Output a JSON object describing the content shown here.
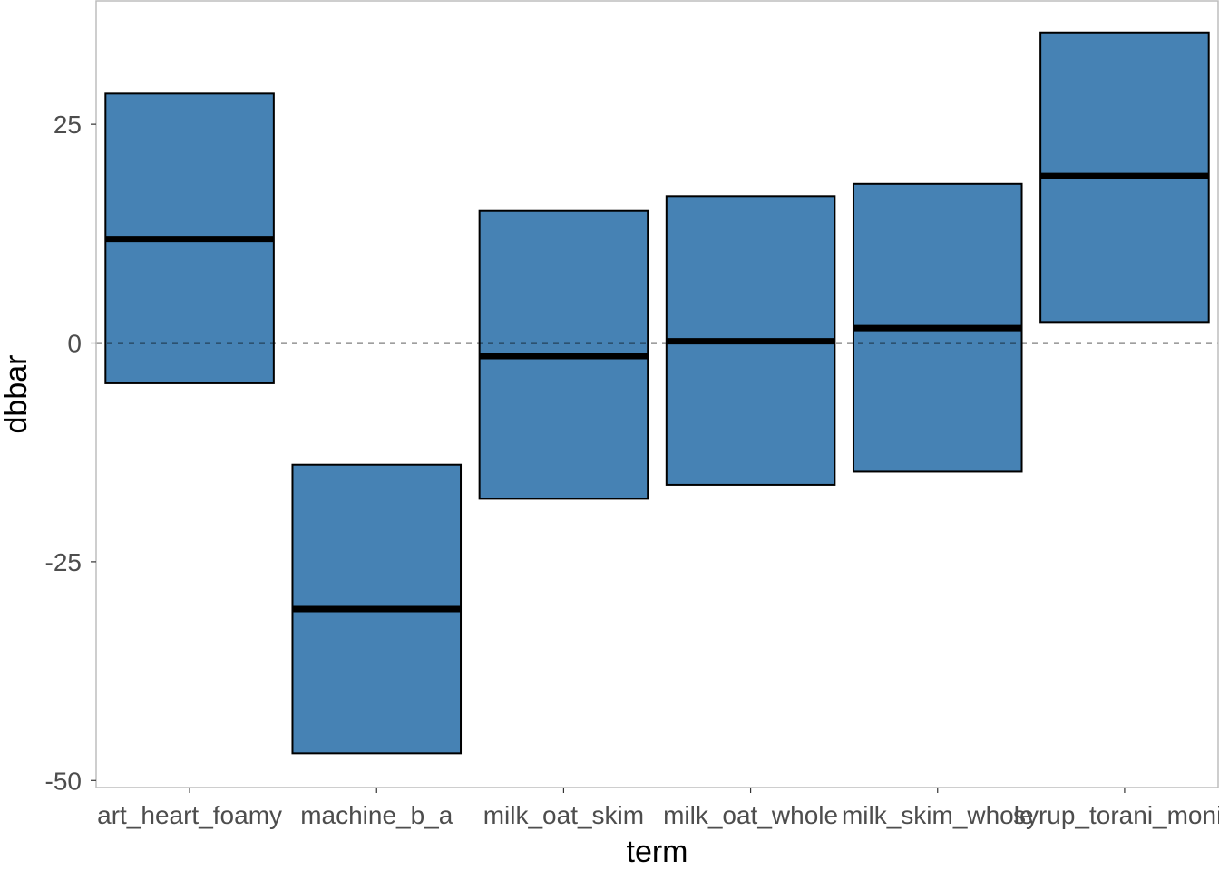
{
  "chart_data": {
    "type": "crossbar",
    "xlabel": "term",
    "ylabel": "dbbar",
    "categories": [
      "art_heart_foamy",
      "machine_b_a",
      "milk_oat_skim",
      "milk_oat_whole",
      "milk_skim_whole",
      "syrup_torani_monin"
    ],
    "series": [
      {
        "middle": [
          11.9,
          -30.4,
          -1.5,
          0.2,
          1.7,
          19.1
        ],
        "lower": [
          -4.6,
          -46.9,
          -17.8,
          -16.2,
          -14.7,
          2.4
        ],
        "upper": [
          28.5,
          -13.9,
          15.1,
          16.8,
          18.2,
          35.5
        ]
      }
    ],
    "yticks": [
      -50,
      -25,
      0,
      25
    ],
    "ylim": [
      -50.8,
      39.1
    ],
    "reference_line": 0,
    "colors": {
      "fill": "#4682B4",
      "outline": "#000000",
      "panel_border": "#bdbdbd"
    }
  }
}
